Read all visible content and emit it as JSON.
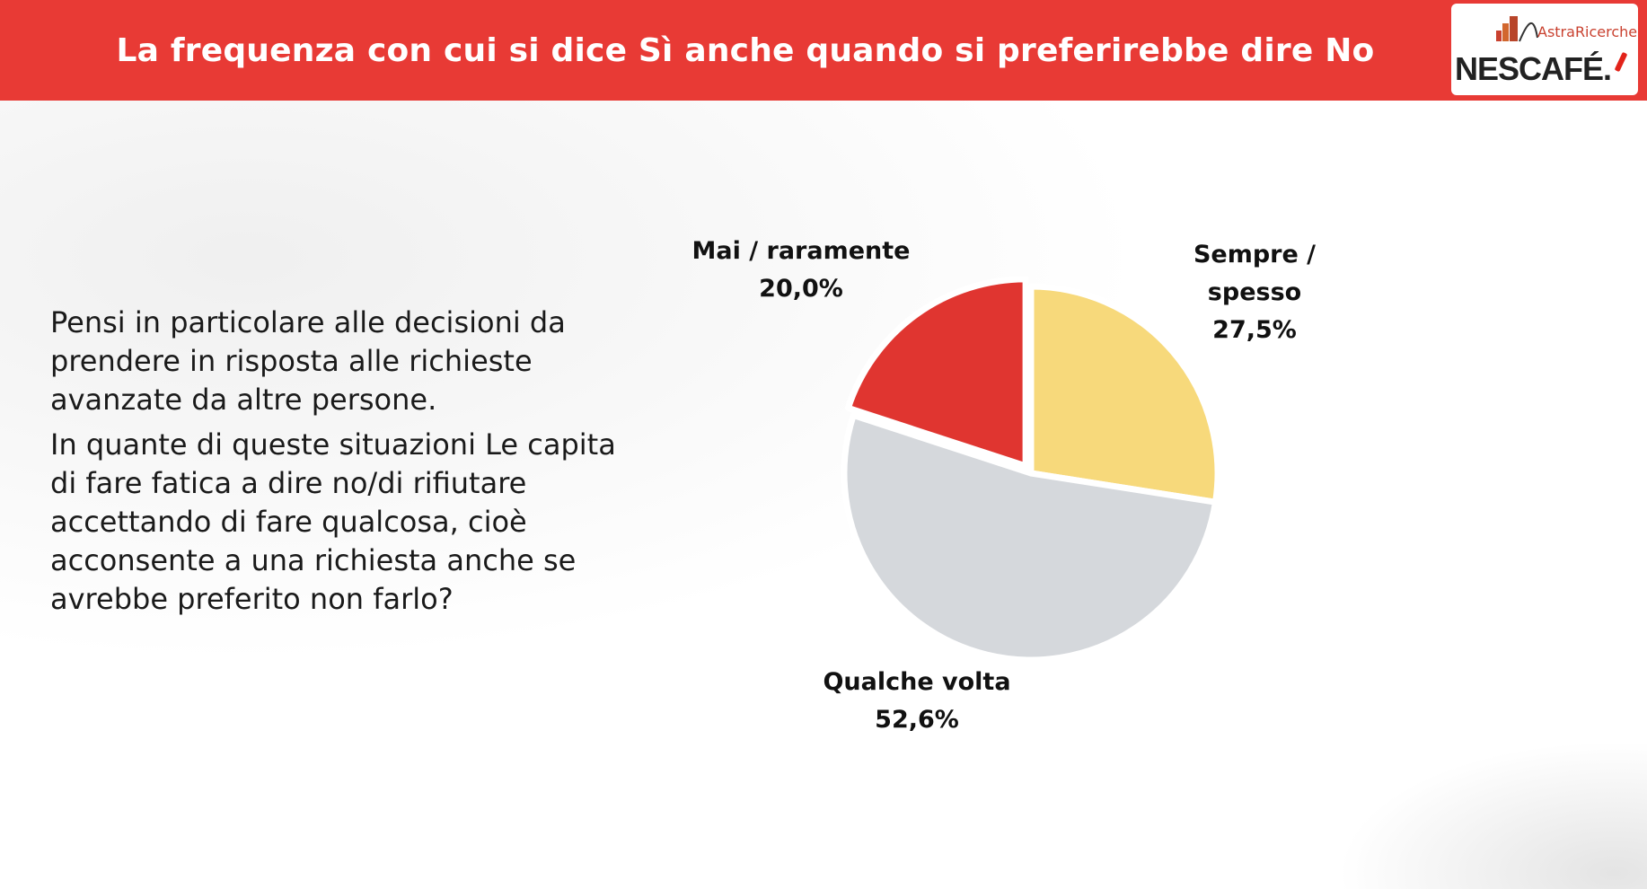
{
  "header": {
    "title": "La frequenza con cui si dice Sì anche quando si preferirebbe dire No",
    "accent_color": "#e83a35"
  },
  "logo": {
    "astra_text": "AstraRicerche",
    "brand_text": "NESCAFÉ."
  },
  "question": {
    "paragraph1": "Pensi in particolare alle decisioni da prendere in risposta alle richieste avanzate da altre persone.",
    "paragraph2": "In quante di queste situazioni Le capita di fare fatica a dire no/di rifiutare accettando di fare qualcosa, cioè acconsente a una richiesta anche se avrebbe preferito non farlo?"
  },
  "chart_data": {
    "type": "pie",
    "title": "La frequenza con cui si dice Sì anche quando si preferirebbe dire No",
    "slices": [
      {
        "label_lines": [
          "Sempre /",
          "spesso"
        ],
        "value": 27.5,
        "value_label": "27,5%",
        "color": "#f7d97b",
        "explode": 0
      },
      {
        "label_lines": [
          "Qualche volta"
        ],
        "value": 52.6,
        "value_label": "52,6%",
        "color": "#d5d8dc",
        "explode": 0
      },
      {
        "label_lines": [
          "Mai / raramente"
        ],
        "value": 20.0,
        "value_label": "20,0%",
        "color": "#e03530",
        "explode": 1
      }
    ]
  }
}
